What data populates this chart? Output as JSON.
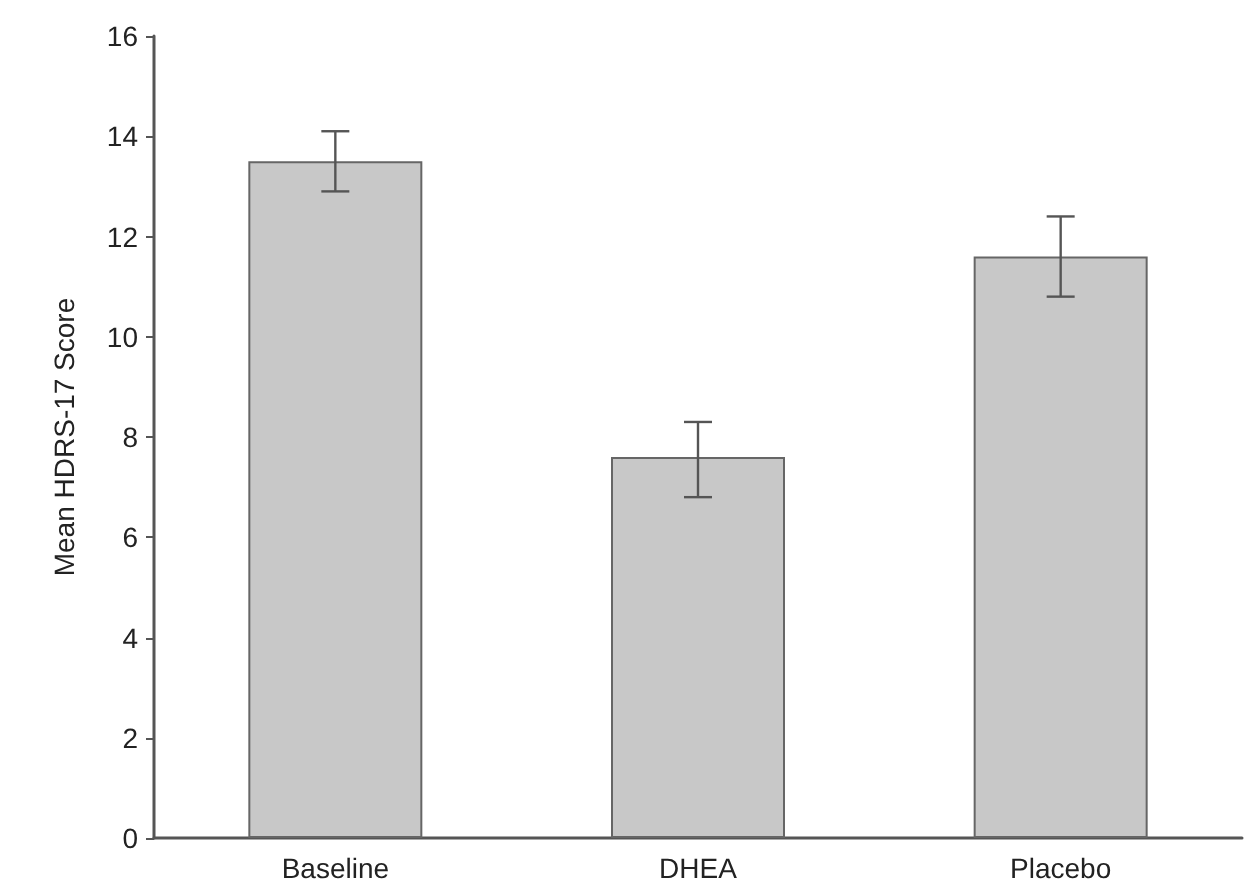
{
  "chart_data": {
    "type": "bar",
    "ylabel": "Mean HDRS-17 Score",
    "categories": [
      "Baseline",
      "DHEA",
      "Placebo"
    ],
    "values": [
      13.5,
      7.6,
      11.6
    ],
    "errors": [
      [
        12.9,
        14.1
      ],
      [
        6.8,
        8.3
      ],
      [
        10.8,
        12.4
      ]
    ],
    "color": "#c8c8c8",
    "ylim": [
      0,
      16
    ],
    "yticks": [
      0,
      2,
      4,
      6,
      8,
      10,
      12,
      14,
      16
    ],
    "grid": false
  }
}
